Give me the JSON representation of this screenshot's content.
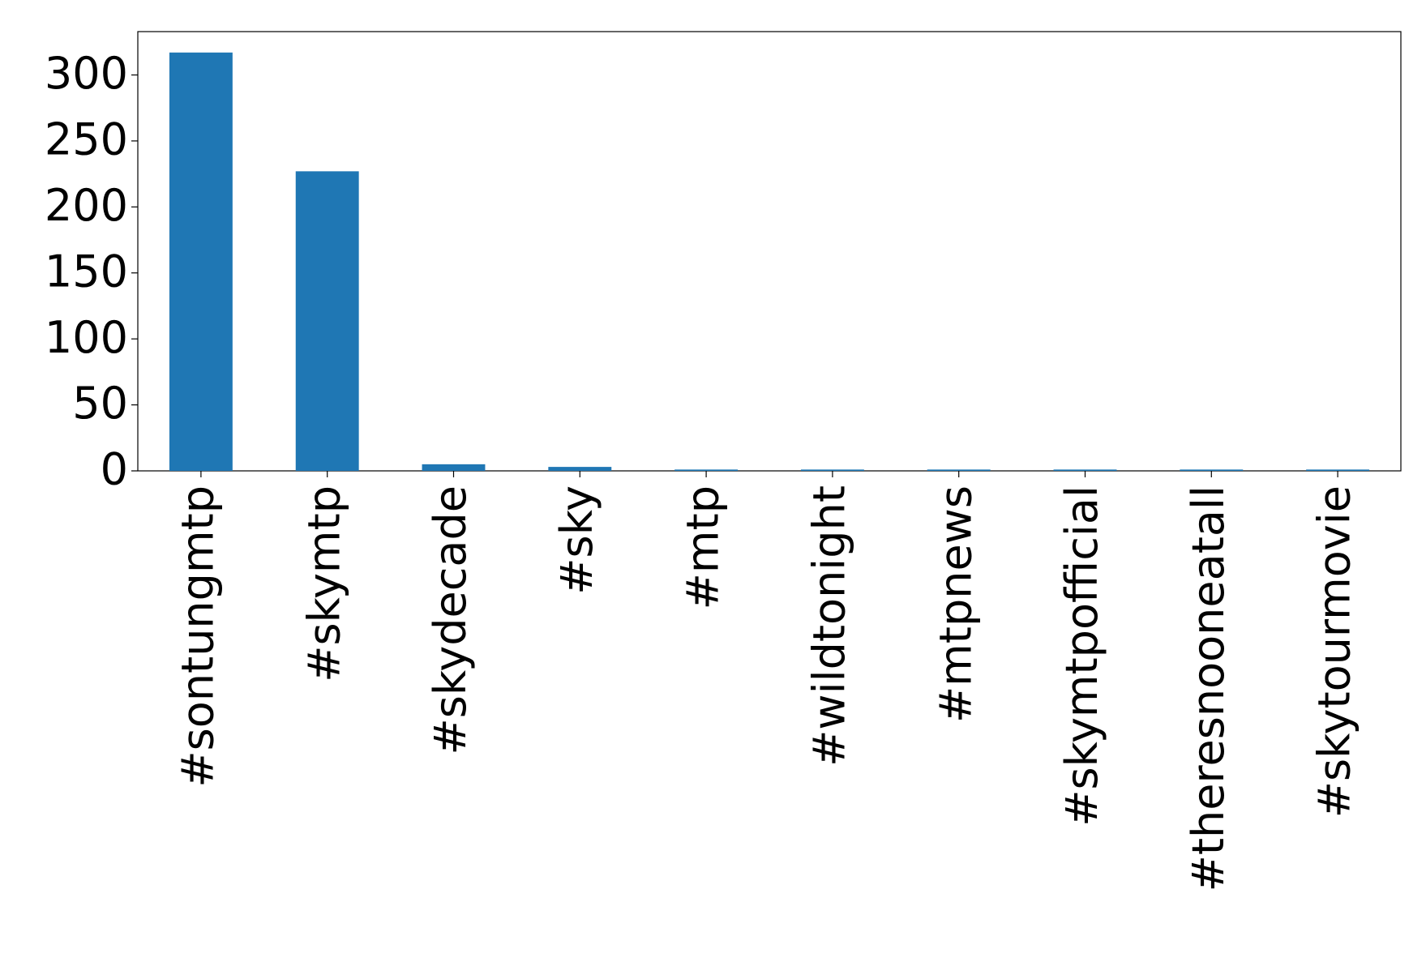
{
  "chart_data": {
    "type": "bar",
    "categories": [
      "#sontungmtp",
      "#skymtp",
      "#skydecade",
      "#sky",
      "#mtp",
      "#wildtonight",
      "#mtpnews",
      "#skymtpofficial",
      "#theresnooneatall",
      "#skytourmovie"
    ],
    "values": [
      317,
      227,
      5,
      3,
      1,
      1,
      1,
      1,
      1,
      1
    ],
    "color": "#1f77b4",
    "ylim": [
      0,
      332.85
    ],
    "yticks": [
      0,
      50,
      100,
      150,
      200,
      250,
      300
    ],
    "grid": false
  }
}
